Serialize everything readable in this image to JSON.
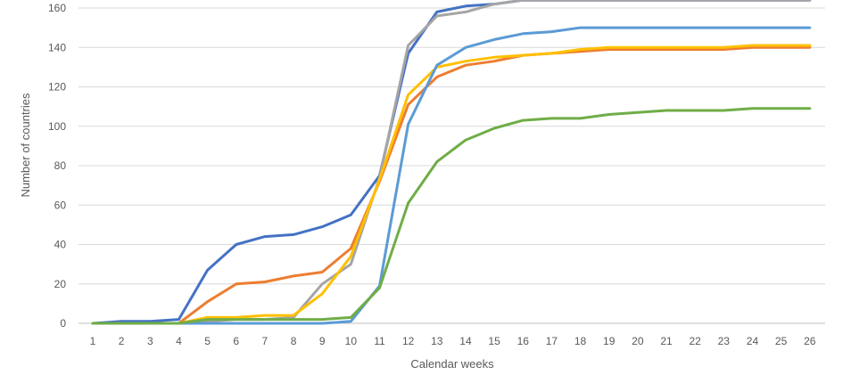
{
  "chart_data": {
    "type": "line",
    "xlabel": "Calendar weeks",
    "ylabel": "Number  of countries",
    "ylim": [
      0,
      160
    ],
    "yticks": [
      0,
      20,
      40,
      60,
      80,
      100,
      120,
      140,
      160
    ],
    "grid": true,
    "x": [
      1,
      2,
      3,
      4,
      5,
      6,
      7,
      8,
      9,
      10,
      11,
      12,
      13,
      14,
      15,
      16,
      17,
      18,
      19,
      20,
      21,
      22,
      23,
      24,
      25,
      26
    ],
    "series": [
      {
        "color": "#4472C4",
        "values": [
          0,
          1,
          1,
          2,
          27,
          40,
          44,
          45,
          49,
          55,
          75,
          137,
          158,
          161,
          162,
          164,
          164,
          164,
          164,
          164,
          164,
          164,
          164,
          164,
          164,
          164
        ]
      },
      {
        "color": "#ED7D31",
        "values": [
          0,
          0,
          0,
          0,
          11,
          20,
          21,
          24,
          26,
          38,
          72,
          111,
          125,
          131,
          133,
          136,
          137,
          138,
          139,
          139,
          139,
          139,
          139,
          140,
          140,
          140
        ]
      },
      {
        "color": "#A5A5A5",
        "values": [
          0,
          0,
          0,
          0,
          1,
          2,
          2,
          3,
          20,
          30,
          74,
          141,
          156,
          158,
          162,
          164,
          164,
          164,
          164,
          164,
          164,
          164,
          164,
          164,
          164,
          164
        ]
      },
      {
        "color": "#FFC000",
        "values": [
          0,
          0,
          0,
          0,
          3,
          3,
          4,
          4,
          15,
          34,
          73,
          116,
          130,
          133,
          135,
          136,
          137,
          139,
          140,
          140,
          140,
          140,
          140,
          141,
          141,
          141
        ]
      },
      {
        "color": "#5B9BD5",
        "values": [
          0,
          0,
          0,
          0,
          0,
          0,
          0,
          0,
          0,
          1,
          19,
          101,
          131,
          140,
          144,
          147,
          148,
          150,
          150,
          150,
          150,
          150,
          150,
          150,
          150,
          150
        ]
      },
      {
        "color": "#70AD47",
        "values": [
          0,
          0,
          0,
          0,
          2,
          2,
          2,
          2,
          2,
          3,
          18,
          61,
          82,
          93,
          99,
          103,
          104,
          104,
          106,
          107,
          108,
          108,
          108,
          109,
          109,
          109
        ]
      }
    ]
  }
}
